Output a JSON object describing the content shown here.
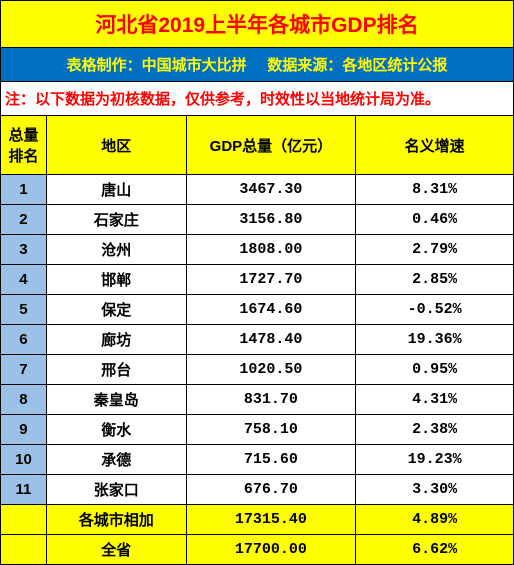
{
  "title": "河北省2019上半年各城市GDP排名",
  "credit_left": "表格制作：中国城市大比拼",
  "credit_right": "数据来源：各地区统计公报",
  "note": "注：以下数据为初核数据，仅供参考，时效性以当地统计局为准。",
  "headers": {
    "rank": "总量排名",
    "region": "地区",
    "gdp": "GDP总量（亿元）",
    "growth": "名义增速"
  },
  "rows": [
    {
      "rank": "1",
      "region": "唐山",
      "gdp": "3467.30",
      "growth": "8.31%"
    },
    {
      "rank": "2",
      "region": "石家庄",
      "gdp": "3156.80",
      "growth": "0.46%"
    },
    {
      "rank": "3",
      "region": "沧州",
      "gdp": "1808.00",
      "growth": "2.79%"
    },
    {
      "rank": "4",
      "region": "邯郸",
      "gdp": "1727.70",
      "growth": "2.85%"
    },
    {
      "rank": "5",
      "region": "保定",
      "gdp": "1674.60",
      "growth": "-0.52%"
    },
    {
      "rank": "6",
      "region": "廊坊",
      "gdp": "1478.40",
      "growth": "19.36%"
    },
    {
      "rank": "7",
      "region": "邢台",
      "gdp": "1020.50",
      "growth": "0.95%"
    },
    {
      "rank": "8",
      "region": "秦皇岛",
      "gdp": "831.70",
      "growth": "4.31%"
    },
    {
      "rank": "9",
      "region": "衡水",
      "gdp": "758.10",
      "growth": "2.38%"
    },
    {
      "rank": "10",
      "region": "承德",
      "gdp": "715.60",
      "growth": "19.23%"
    },
    {
      "rank": "11",
      "region": "张家口",
      "gdp": "676.70",
      "growth": "3.30%"
    }
  ],
  "summary": [
    {
      "rank": "",
      "region": "各城市相加",
      "gdp": "17315.40",
      "growth": "4.89%"
    },
    {
      "rank": "",
      "region": "全省",
      "gdp": "17700.00",
      "growth": "6.62%"
    }
  ],
  "colors": {
    "title_bg": "#ffff00",
    "title_fg": "#ff0000",
    "credit_bg": "#0070c0",
    "credit_fg": "#ffff00",
    "note_fg": "#ff0000",
    "header_bg": "#ffff00",
    "rank_bg": "#9bc2e6",
    "summary_bg": "#ffff00",
    "border": "#000000"
  }
}
